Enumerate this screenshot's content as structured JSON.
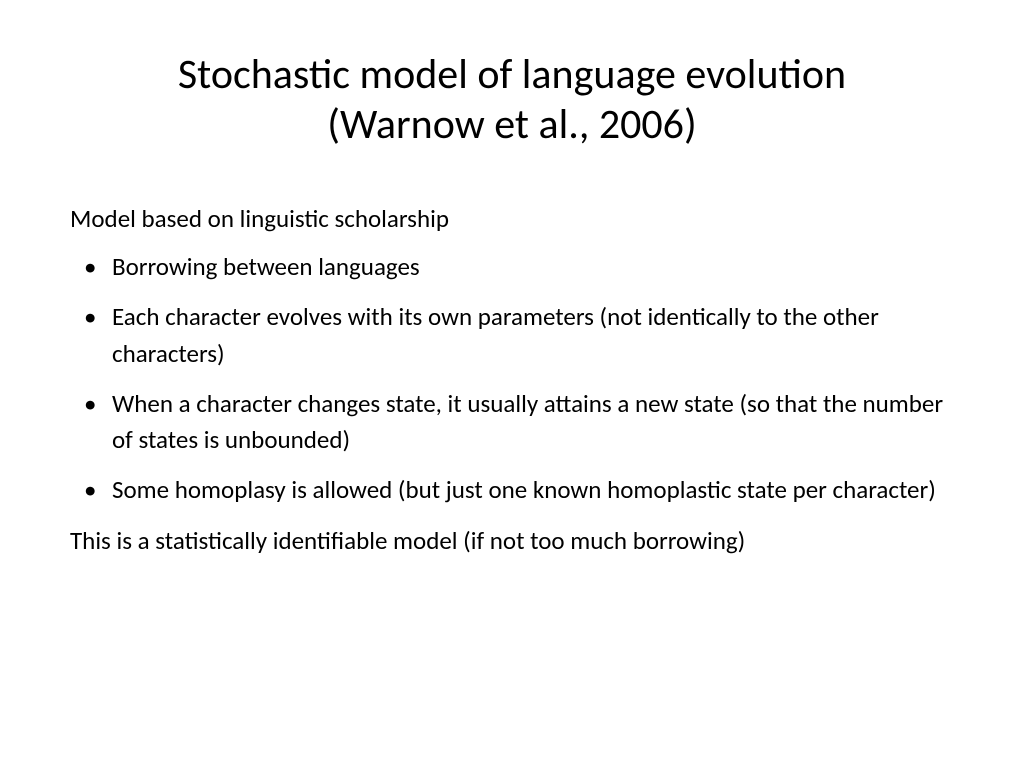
{
  "slide": {
    "title_line1": "Stochastic model of language evolution",
    "title_line2": "(Warnow et al., 2006)",
    "intro": "Model based on linguistic scholarship",
    "bullets": [
      "Borrowing between languages",
      "Each character evolves with its own parameters (not identically to the other characters)",
      "When a character changes state, it usually attains a new state (so that the number of states is unbounded)",
      "Some homoplasy is allowed (but just one known homoplastic state per character)"
    ],
    "closing": "This is a statistically identifiable model (if not too much borrowing)"
  },
  "style": {
    "background_color": "#ffffff",
    "text_color": "#000000",
    "title_fontsize": 42,
    "body_fontsize": 25,
    "font_family": "Calibri"
  }
}
